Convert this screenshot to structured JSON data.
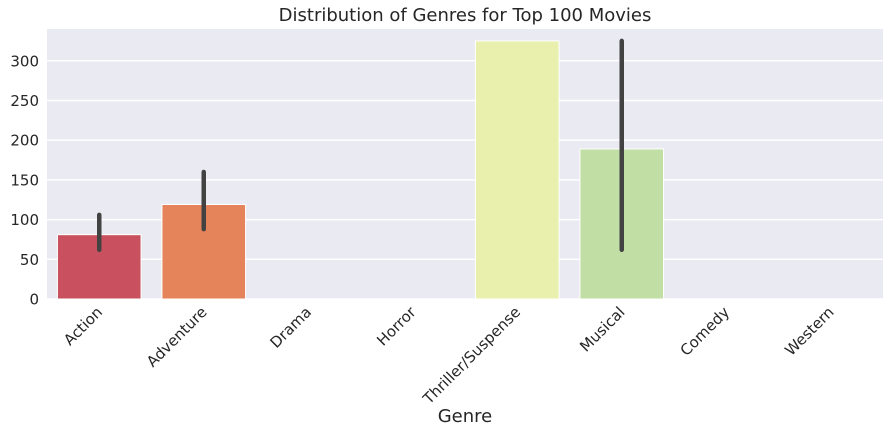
{
  "chart_data": {
    "type": "bar",
    "title": "Distribution of Genres for Top 100 Movies",
    "xlabel": "Genre",
    "ylabel": "",
    "categories": [
      "Action",
      "Adventure",
      "Drama",
      "Horror",
      "Thriller/Suspense",
      "Musical",
      "Comedy",
      "Western"
    ],
    "values": [
      81,
      119,
      0,
      0,
      325,
      189,
      0,
      0
    ],
    "error_bars": [
      {
        "low": 62,
        "high": 106
      },
      {
        "low": 88,
        "high": 160
      },
      null,
      null,
      null,
      {
        "low": 62,
        "high": 325
      },
      null,
      null
    ],
    "colors": [
      "#c9515f",
      "#e5845a",
      "#f4bb6b",
      "#f8e08f",
      "#e9f0ad",
      "#c1dea5",
      "#8fcaa4",
      "#5b9fc1"
    ],
    "ylim": [
      0,
      340
    ],
    "yticks": [
      0,
      50,
      100,
      150,
      200,
      250,
      300
    ],
    "grid": true,
    "background": "#eaeaf2",
    "error_color": "#424242"
  }
}
